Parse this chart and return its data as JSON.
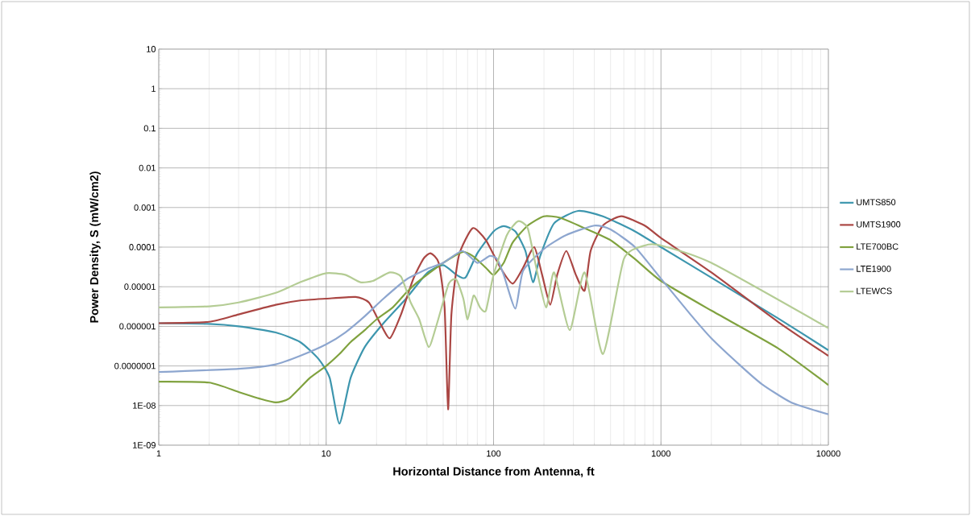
{
  "chart_data": {
    "type": "line",
    "xlabel": "Horizontal Distance from Antenna, ft",
    "ylabel": "Power Density, S (mW/cm2)",
    "log": "xy",
    "grid": true,
    "legend": "right",
    "marker": "none",
    "line_style": "solid",
    "xlim": [
      1,
      10000
    ],
    "xticks": [
      1,
      10,
      100,
      1000,
      10000
    ],
    "ylim": [
      1e-09,
      10
    ],
    "yticks": [
      {
        "value": 1e-09,
        "label": "1E-09"
      },
      {
        "value": 1e-08,
        "label": "1E-08"
      },
      {
        "value": 1e-07,
        "label": "0.0000001"
      },
      {
        "value": 1e-06,
        "label": "0.000001"
      },
      {
        "value": 1e-05,
        "label": "0.00001"
      },
      {
        "value": 0.0001,
        "label": "0.0001"
      },
      {
        "value": 0.001,
        "label": "0.001"
      },
      {
        "value": 0.01,
        "label": "0.01"
      },
      {
        "value": 0.1,
        "label": "0.1"
      },
      {
        "value": 1,
        "label": "1"
      },
      {
        "value": 10,
        "label": "10"
      }
    ],
    "series": [
      {
        "name": "UMTS850",
        "color": "#3d96ae",
        "x": [
          1,
          2,
          3,
          5,
          7,
          9,
          10.5,
          12,
          14,
          17,
          22,
          30,
          40,
          50,
          60,
          68,
          80,
          100,
          115,
          135,
          155,
          172,
          190,
          230,
          320,
          450,
          700,
          1000,
          2000,
          5000,
          10000
        ],
        "values": [
          1.2e-06,
          1.15e-06,
          1e-06,
          7e-07,
          4e-07,
          1.5e-07,
          5e-08,
          3.5e-09,
          5e-08,
          3e-07,
          1.2e-06,
          5e-06,
          2.2e-05,
          3.5e-05,
          2e-05,
          1.7e-05,
          7e-05,
          0.00025,
          0.00034,
          0.00025,
          8e-05,
          1.3e-05,
          6e-05,
          0.0004,
          0.00082,
          0.0006,
          0.00025,
          0.0001,
          1.7e-05,
          1.6e-06,
          2.5e-07
        ]
      },
      {
        "name": "UMTS1900",
        "color": "#aa4643",
        "x": [
          1,
          2,
          3,
          5,
          7,
          10,
          15,
          18,
          21,
          24,
          28,
          33,
          38,
          42,
          47,
          51,
          53.5,
          56,
          62,
          75,
          90,
          110,
          130,
          150,
          175,
          195,
          218,
          240,
          272,
          310,
          350,
          380,
          450,
          580,
          800,
          1000,
          2000,
          5000,
          10000
        ],
        "values": [
          1.2e-06,
          1.3e-06,
          2e-06,
          3.5e-06,
          4.5e-06,
          5e-06,
          5.5e-06,
          4e-06,
          1.2e-06,
          5e-07,
          2e-06,
          1.5e-05,
          5e-05,
          7e-05,
          4e-05,
          3e-06,
          8e-09,
          2e-06,
          6e-05,
          0.0003,
          0.00015,
          3e-05,
          1.2e-05,
          3e-05,
          0.0001,
          2e-05,
          3.5e-06,
          2e-05,
          8e-05,
          2e-05,
          8e-06,
          8e-05,
          0.00035,
          0.0006,
          0.00035,
          0.00017,
          2.3e-05,
          1.3e-06,
          1.8e-07
        ]
      },
      {
        "name": "LTE700BC",
        "color": "#80a23f",
        "x": [
          1,
          2,
          3,
          4,
          5,
          6,
          8,
          10,
          12,
          14,
          17,
          20,
          25,
          30,
          35,
          40,
          50,
          65,
          75,
          90,
          100,
          115,
          130,
          160,
          200,
          250,
          350,
          500,
          700,
          1000,
          2000,
          5000,
          10000
        ],
        "values": [
          4e-08,
          3.8e-08,
          2.2e-08,
          1.5e-08,
          1.2e-08,
          1.5e-08,
          5e-08,
          1e-07,
          2e-07,
          4e-07,
          8e-07,
          1.5e-06,
          3e-06,
          7e-06,
          1.3e-05,
          2e-05,
          4e-05,
          7.5e-05,
          6e-05,
          3e-05,
          2e-05,
          4e-05,
          0.00013,
          0.00035,
          0.0006,
          0.00055,
          0.0003,
          0.00015,
          5e-05,
          1.4e-05,
          2.5e-06,
          2.8e-07,
          3.3e-08
        ]
      },
      {
        "name": "LTE1900",
        "color": "#8da6cf",
        "x": [
          1,
          3,
          5,
          7,
          10,
          13,
          17,
          22,
          30,
          40,
          50,
          65,
          80,
          95,
          105,
          115,
          135,
          150,
          200,
          270,
          400,
          500,
          700,
          1000,
          1500,
          2000,
          3000,
          4000,
          6000,
          10000
        ],
        "values": [
          7e-08,
          8.5e-08,
          1.1e-07,
          1.8e-07,
          3.5e-07,
          7e-07,
          1.8e-06,
          5e-06,
          1.5e-05,
          2.8e-05,
          4e-05,
          8e-05,
          4e-05,
          6e-05,
          5e-05,
          2e-05,
          2.8e-06,
          2.5e-05,
          9e-05,
          0.0002,
          0.00035,
          0.00028,
          0.0001,
          1.6e-05,
          2e-06,
          5e-07,
          1e-07,
          3.5e-08,
          1.2e-08,
          6e-09
        ]
      },
      {
        "name": "LTEWCS",
        "color": "#b4cc94",
        "x": [
          1,
          2,
          3,
          5,
          7,
          10,
          13,
          16,
          19,
          24,
          28,
          32,
          36,
          41,
          46,
          54,
          60,
          66,
          70,
          76,
          83,
          90,
          100,
          120,
          140,
          160,
          180,
          206,
          230,
          285,
          350,
          450,
          600,
          800,
          1000,
          2000,
          10000
        ],
        "values": [
          3e-06,
          3.2e-06,
          4e-06,
          7e-06,
          1.3e-05,
          2.2e-05,
          2e-05,
          1.3e-05,
          1.4e-05,
          2.3e-05,
          1.8e-05,
          4e-06,
          1.5e-06,
          3e-07,
          1.2e-06,
          1.2e-05,
          1.5e-05,
          5e-06,
          1.5e-06,
          6e-06,
          3e-06,
          2.5e-06,
          2e-05,
          0.0002,
          0.00045,
          0.0003,
          3e-05,
          3e-06,
          2.3e-05,
          8e-07,
          2.3e-05,
          2e-07,
          5e-05,
          0.00011,
          0.00011,
          4e-05,
          9e-07
        ]
      }
    ]
  }
}
